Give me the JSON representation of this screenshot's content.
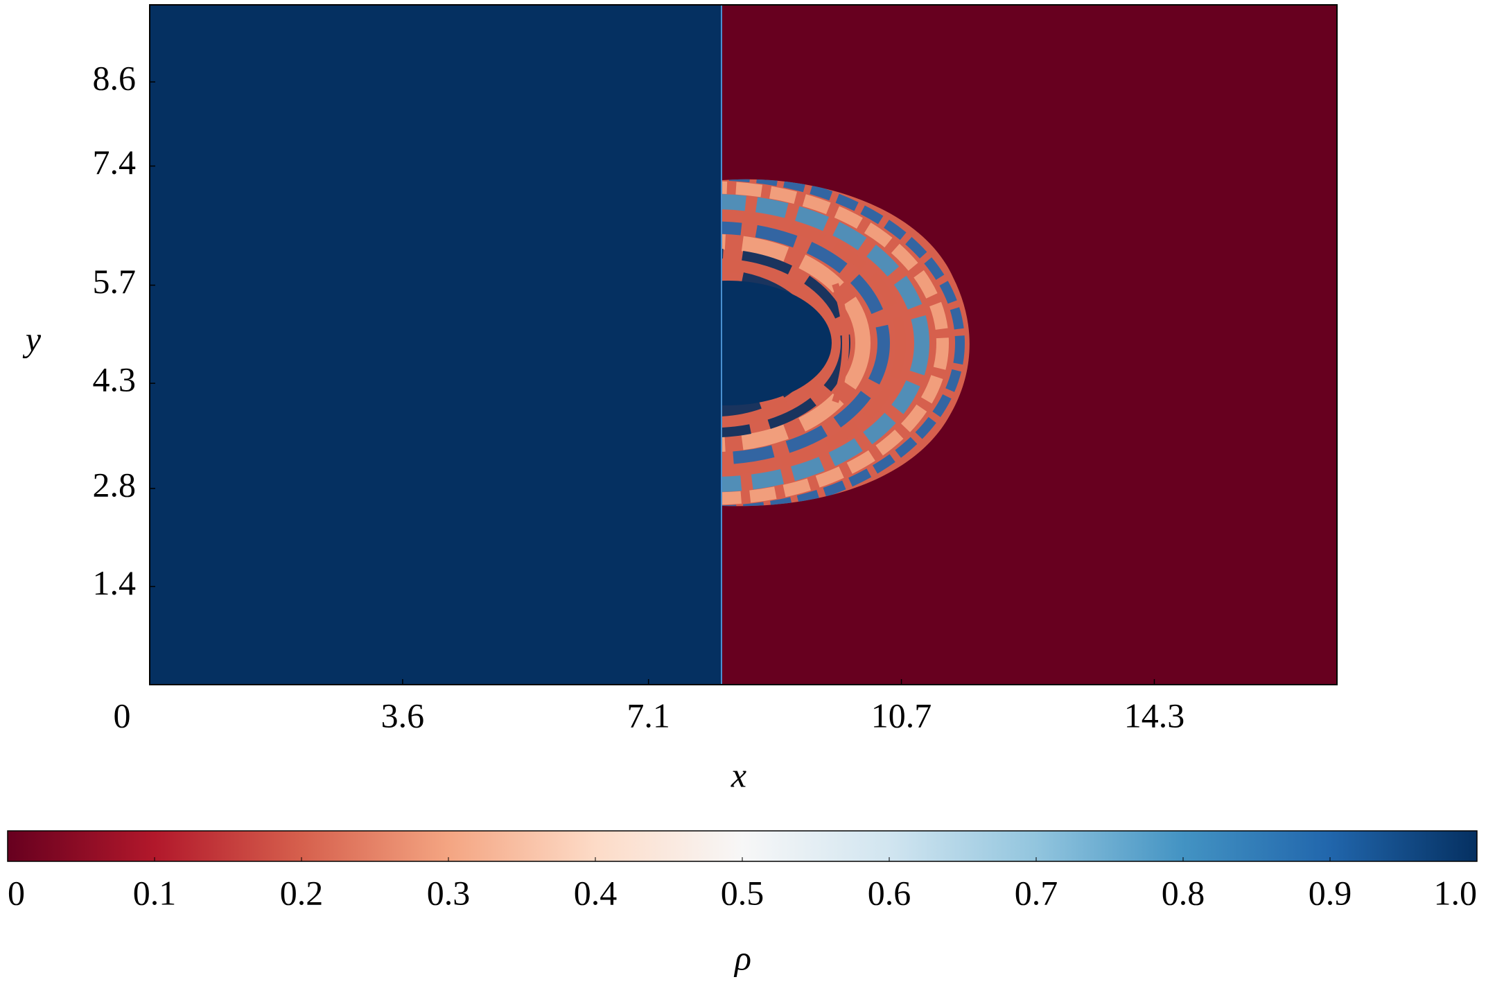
{
  "chart_data": {
    "type": "heatmap",
    "x_label": "x",
    "y_label": "y",
    "colorbar_label": "ρ",
    "xlim": [
      0,
      16.9
    ],
    "ylim": [
      0,
      9.7
    ],
    "xticks": [
      0,
      3.6,
      7.1,
      10.7,
      14.3
    ],
    "yticks": [
      1.4,
      2.8,
      4.3,
      5.7,
      7.4,
      8.6
    ],
    "clim": [
      0,
      1
    ],
    "cticks": [
      0,
      0.1,
      0.2,
      0.3,
      0.4,
      0.5,
      0.6,
      0.7,
      0.8,
      0.9,
      {
        "value": 1,
        "label": "1.0"
      }
    ],
    "colormap": [
      "#67001f",
      "#b2182b",
      "#d6604d",
      "#f4a582",
      "#fddbc7",
      "#f7f7f7",
      "#d1e5f0",
      "#92c5de",
      "#4393c3",
      "#2166ac",
      "#053061"
    ]
  }
}
